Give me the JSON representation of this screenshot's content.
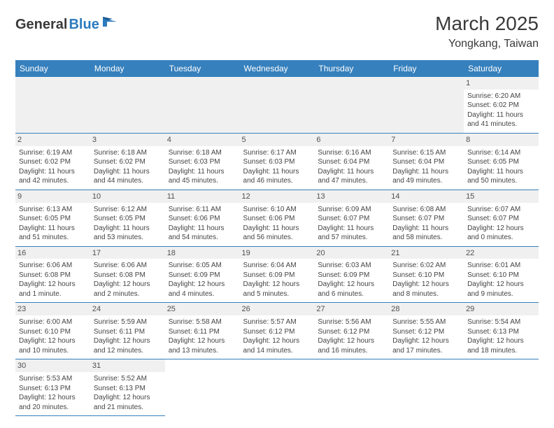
{
  "logo": {
    "text1": "General",
    "text2": "Blue"
  },
  "title": "March 2025",
  "location": "Yongkang, Taiwan",
  "colors": {
    "header_bg": "#3680bd",
    "header_text": "#ffffff",
    "daynum_bg": "#f0f0f0",
    "border": "#3680bd",
    "logo_dark": "#3a3a3a",
    "logo_blue": "#2b7bbf"
  },
  "weekdays": [
    "Sunday",
    "Monday",
    "Tuesday",
    "Wednesday",
    "Thursday",
    "Friday",
    "Saturday"
  ],
  "cells": [
    [
      null,
      null,
      null,
      null,
      null,
      null,
      {
        "n": "1",
        "sr": "Sunrise: 6:20 AM",
        "ss": "Sunset: 6:02 PM",
        "dl": "Daylight: 11 hours and 41 minutes."
      }
    ],
    [
      {
        "n": "2",
        "sr": "Sunrise: 6:19 AM",
        "ss": "Sunset: 6:02 PM",
        "dl": "Daylight: 11 hours and 42 minutes."
      },
      {
        "n": "3",
        "sr": "Sunrise: 6:18 AM",
        "ss": "Sunset: 6:02 PM",
        "dl": "Daylight: 11 hours and 44 minutes."
      },
      {
        "n": "4",
        "sr": "Sunrise: 6:18 AM",
        "ss": "Sunset: 6:03 PM",
        "dl": "Daylight: 11 hours and 45 minutes."
      },
      {
        "n": "5",
        "sr": "Sunrise: 6:17 AM",
        "ss": "Sunset: 6:03 PM",
        "dl": "Daylight: 11 hours and 46 minutes."
      },
      {
        "n": "6",
        "sr": "Sunrise: 6:16 AM",
        "ss": "Sunset: 6:04 PM",
        "dl": "Daylight: 11 hours and 47 minutes."
      },
      {
        "n": "7",
        "sr": "Sunrise: 6:15 AM",
        "ss": "Sunset: 6:04 PM",
        "dl": "Daylight: 11 hours and 49 minutes."
      },
      {
        "n": "8",
        "sr": "Sunrise: 6:14 AM",
        "ss": "Sunset: 6:05 PM",
        "dl": "Daylight: 11 hours and 50 minutes."
      }
    ],
    [
      {
        "n": "9",
        "sr": "Sunrise: 6:13 AM",
        "ss": "Sunset: 6:05 PM",
        "dl": "Daylight: 11 hours and 51 minutes."
      },
      {
        "n": "10",
        "sr": "Sunrise: 6:12 AM",
        "ss": "Sunset: 6:05 PM",
        "dl": "Daylight: 11 hours and 53 minutes."
      },
      {
        "n": "11",
        "sr": "Sunrise: 6:11 AM",
        "ss": "Sunset: 6:06 PM",
        "dl": "Daylight: 11 hours and 54 minutes."
      },
      {
        "n": "12",
        "sr": "Sunrise: 6:10 AM",
        "ss": "Sunset: 6:06 PM",
        "dl": "Daylight: 11 hours and 56 minutes."
      },
      {
        "n": "13",
        "sr": "Sunrise: 6:09 AM",
        "ss": "Sunset: 6:07 PM",
        "dl": "Daylight: 11 hours and 57 minutes."
      },
      {
        "n": "14",
        "sr": "Sunrise: 6:08 AM",
        "ss": "Sunset: 6:07 PM",
        "dl": "Daylight: 11 hours and 58 minutes."
      },
      {
        "n": "15",
        "sr": "Sunrise: 6:07 AM",
        "ss": "Sunset: 6:07 PM",
        "dl": "Daylight: 12 hours and 0 minutes."
      }
    ],
    [
      {
        "n": "16",
        "sr": "Sunrise: 6:06 AM",
        "ss": "Sunset: 6:08 PM",
        "dl": "Daylight: 12 hours and 1 minute."
      },
      {
        "n": "17",
        "sr": "Sunrise: 6:06 AM",
        "ss": "Sunset: 6:08 PM",
        "dl": "Daylight: 12 hours and 2 minutes."
      },
      {
        "n": "18",
        "sr": "Sunrise: 6:05 AM",
        "ss": "Sunset: 6:09 PM",
        "dl": "Daylight: 12 hours and 4 minutes."
      },
      {
        "n": "19",
        "sr": "Sunrise: 6:04 AM",
        "ss": "Sunset: 6:09 PM",
        "dl": "Daylight: 12 hours and 5 minutes."
      },
      {
        "n": "20",
        "sr": "Sunrise: 6:03 AM",
        "ss": "Sunset: 6:09 PM",
        "dl": "Daylight: 12 hours and 6 minutes."
      },
      {
        "n": "21",
        "sr": "Sunrise: 6:02 AM",
        "ss": "Sunset: 6:10 PM",
        "dl": "Daylight: 12 hours and 8 minutes."
      },
      {
        "n": "22",
        "sr": "Sunrise: 6:01 AM",
        "ss": "Sunset: 6:10 PM",
        "dl": "Daylight: 12 hours and 9 minutes."
      }
    ],
    [
      {
        "n": "23",
        "sr": "Sunrise: 6:00 AM",
        "ss": "Sunset: 6:10 PM",
        "dl": "Daylight: 12 hours and 10 minutes."
      },
      {
        "n": "24",
        "sr": "Sunrise: 5:59 AM",
        "ss": "Sunset: 6:11 PM",
        "dl": "Daylight: 12 hours and 12 minutes."
      },
      {
        "n": "25",
        "sr": "Sunrise: 5:58 AM",
        "ss": "Sunset: 6:11 PM",
        "dl": "Daylight: 12 hours and 13 minutes."
      },
      {
        "n": "26",
        "sr": "Sunrise: 5:57 AM",
        "ss": "Sunset: 6:12 PM",
        "dl": "Daylight: 12 hours and 14 minutes."
      },
      {
        "n": "27",
        "sr": "Sunrise: 5:56 AM",
        "ss": "Sunset: 6:12 PM",
        "dl": "Daylight: 12 hours and 16 minutes."
      },
      {
        "n": "28",
        "sr": "Sunrise: 5:55 AM",
        "ss": "Sunset: 6:12 PM",
        "dl": "Daylight: 12 hours and 17 minutes."
      },
      {
        "n": "29",
        "sr": "Sunrise: 5:54 AM",
        "ss": "Sunset: 6:13 PM",
        "dl": "Daylight: 12 hours and 18 minutes."
      }
    ],
    [
      {
        "n": "30",
        "sr": "Sunrise: 5:53 AM",
        "ss": "Sunset: 6:13 PM",
        "dl": "Daylight: 12 hours and 20 minutes."
      },
      {
        "n": "31",
        "sr": "Sunrise: 5:52 AM",
        "ss": "Sunset: 6:13 PM",
        "dl": "Daylight: 12 hours and 21 minutes."
      },
      null,
      null,
      null,
      null,
      null
    ]
  ]
}
